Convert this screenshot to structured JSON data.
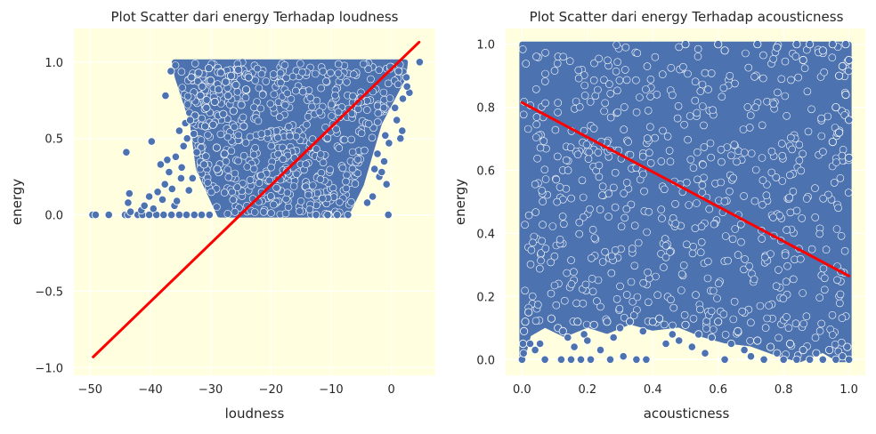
{
  "chart_data": [
    {
      "type": "scatter",
      "title": "Plot Scatter dari energy Terhadap loudness",
      "xlabel": "loudness",
      "ylabel": "energy",
      "xlim": [
        -52.7,
        7.3
      ],
      "ylim": [
        -1.05,
        1.22
      ],
      "xticks": [
        -50,
        -40,
        -30,
        -20,
        -10,
        0
      ],
      "xtick_labels": [
        "−50",
        "−40",
        "−30",
        "−20",
        "−10",
        "0"
      ],
      "yticks": [
        -1.0,
        -0.5,
        0.0,
        0.5,
        1.0
      ],
      "ytick_labels": [
        "−1.0",
        "−0.5",
        "0.0",
        "0.5",
        "1.0"
      ],
      "grid": true,
      "plot_background": "#ffffe0",
      "point_color": "#4c72b0",
      "line_color": "#ff0000",
      "regression_line": {
        "x": [
          -49.5,
          4.6
        ],
        "y": [
          -0.93,
          1.13
        ]
      },
      "dense_region": {
        "vertices": [
          [
            -36,
            1.0
          ],
          [
            2.3,
            1.0
          ],
          [
            2.0,
            0.9
          ],
          [
            -2.0,
            0.6
          ],
          [
            -5.0,
            0.2
          ],
          [
            -7.5,
            0.0
          ],
          [
            -28.5,
            0.0
          ],
          [
            -32,
            0.3
          ],
          [
            -33,
            0.6
          ],
          [
            -35.5,
            0.9
          ]
        ],
        "note": "overplotted dense cloud of points"
      },
      "points": [
        [
          -49.6,
          0.0
        ],
        [
          -49.1,
          0.0
        ],
        [
          -46.9,
          0.0
        ],
        [
          -44.2,
          0.0
        ],
        [
          -43.7,
          0.0
        ],
        [
          -42.1,
          0.0
        ],
        [
          -41.3,
          0.0
        ],
        [
          -40.2,
          0.0
        ],
        [
          -39.0,
          0.0
        ],
        [
          -37.8,
          0.0
        ],
        [
          -36.5,
          0.0
        ],
        [
          -35.2,
          0.0
        ],
        [
          -34.0,
          0.0
        ],
        [
          -32.7,
          0.0
        ],
        [
          -31.5,
          0.0
        ],
        [
          -30.2,
          0.0
        ],
        [
          -12.5,
          0.0
        ],
        [
          -10.6,
          0.0
        ],
        [
          -9.0,
          0.0
        ],
        [
          -7.2,
          0.0
        ],
        [
          -0.5,
          0.0
        ],
        [
          -44.0,
          0.41
        ],
        [
          -43.5,
          0.14
        ],
        [
          -43.7,
          0.08
        ],
        [
          -43.3,
          0.02
        ],
        [
          -41.5,
          0.03
        ],
        [
          -41.0,
          0.06
        ],
        [
          -40.2,
          0.12
        ],
        [
          -39.5,
          0.04
        ],
        [
          -38.8,
          0.15
        ],
        [
          -38.3,
          0.33
        ],
        [
          -38.0,
          0.1
        ],
        [
          -37.6,
          0.2
        ],
        [
          -37.2,
          0.36
        ],
        [
          -36.9,
          0.28
        ],
        [
          -36.4,
          0.17
        ],
        [
          -36.0,
          0.06
        ],
        [
          -35.6,
          0.09
        ],
        [
          -35.2,
          0.55
        ],
        [
          -34.8,
          0.31
        ],
        [
          -34.5,
          0.45
        ],
        [
          -34.2,
          0.6
        ],
        [
          -33.9,
          0.5
        ],
        [
          -33.6,
          0.16
        ],
        [
          -33.2,
          0.9
        ],
        [
          -33.0,
          0.24
        ],
        [
          -32.6,
          0.65
        ],
        [
          -32.3,
          0.41
        ],
        [
          -32.0,
          0.93
        ],
        [
          -31.7,
          0.78
        ],
        [
          -31.4,
          0.84
        ],
        [
          -31.1,
          0.33
        ],
        [
          -30.7,
          0.7
        ],
        [
          -30.3,
          0.96
        ],
        [
          -30.0,
          0.88
        ],
        [
          -29.6,
          0.59
        ],
        [
          -29.3,
          0.74
        ],
        [
          -29.0,
          0.44
        ],
        [
          -28.7,
          0.82
        ],
        [
          -28.3,
          0.93
        ],
        [
          -27.9,
          0.66
        ],
        [
          -27.5,
          0.87
        ],
        [
          -27.1,
          0.78
        ],
        [
          -26.6,
          0.91
        ],
        [
          -26.2,
          0.68
        ],
        [
          -25.8,
          0.85
        ],
        [
          -25.4,
          0.95
        ],
        [
          -24.9,
          0.72
        ],
        [
          -24.5,
          0.58
        ],
        [
          -24.1,
          0.82
        ],
        [
          -23.7,
          0.9
        ],
        [
          -39.8,
          0.48
        ],
        [
          -37.5,
          0.78
        ],
        [
          -36.6,
          0.94
        ],
        [
          -35.8,
          0.38
        ],
        [
          -34.9,
          0.24
        ],
        [
          -33.4,
          0.62
        ],
        [
          -32.8,
          0.53
        ],
        [
          -30.9,
          0.58
        ],
        [
          -28.9,
          0.3
        ],
        [
          -27.7,
          0.4
        ],
        [
          1.2,
          0.94
        ],
        [
          2.5,
          0.9
        ],
        [
          3.0,
          0.8
        ],
        [
          1.8,
          0.55
        ],
        [
          2.6,
          0.84
        ],
        [
          4.7,
          1.0
        ],
        [
          1.5,
          0.5
        ],
        [
          -0.8,
          0.2
        ],
        [
          -1.2,
          0.35
        ],
        [
          -2.0,
          0.25
        ],
        [
          -2.3,
          0.4
        ],
        [
          -3.1,
          0.12
        ],
        [
          -4.0,
          0.08
        ],
        [
          -1.6,
          0.28
        ],
        [
          0.6,
          0.7
        ],
        [
          0.9,
          0.62
        ],
        [
          -0.4,
          0.47
        ],
        [
          -2.8,
          0.3
        ],
        [
          1.9,
          0.76
        ],
        [
          -1.0,
          0.52
        ]
      ]
    },
    {
      "type": "scatter",
      "title": "Plot Scatter dari energy Terhadap acousticness",
      "xlabel": "acousticness",
      "ylabel": "energy",
      "xlim": [
        -0.05,
        1.05
      ],
      "ylim": [
        -0.05,
        1.05
      ],
      "xticks": [
        0.0,
        0.2,
        0.4,
        0.6,
        0.8,
        1.0
      ],
      "xtick_labels": [
        "0.0",
        "0.2",
        "0.4",
        "0.6",
        "0.8",
        "1.0"
      ],
      "yticks": [
        0.0,
        0.2,
        0.4,
        0.6,
        0.8,
        1.0
      ],
      "ytick_labels": [
        "0.0",
        "0.2",
        "0.4",
        "0.6",
        "0.8",
        "1.0"
      ],
      "grid": true,
      "plot_background": "#ffffe0",
      "point_color": "#4c72b0",
      "line_color": "#ff0000",
      "regression_line": {
        "x": [
          0.0,
          1.0
        ],
        "y": [
          0.815,
          0.265
        ]
      },
      "dense_region": {
        "vertices": [
          [
            0.0,
            1.0
          ],
          [
            1.0,
            1.0
          ],
          [
            1.0,
            0.0
          ],
          [
            0.97,
            0.0
          ],
          [
            0.92,
            0.03
          ],
          [
            0.85,
            0.0
          ],
          [
            0.78,
            0.02
          ],
          [
            0.7,
            0.05
          ],
          [
            0.62,
            0.06
          ],
          [
            0.55,
            0.08
          ],
          [
            0.48,
            0.11
          ],
          [
            0.4,
            0.1
          ],
          [
            0.33,
            0.12
          ],
          [
            0.26,
            0.09
          ],
          [
            0.2,
            0.11
          ],
          [
            0.13,
            0.08
          ],
          [
            0.07,
            0.11
          ],
          [
            0.02,
            0.08
          ],
          [
            0.0,
            0.0
          ]
        ],
        "note": "overplotted dense cloud of points"
      },
      "points": [
        [
          0.0,
          0.0
        ],
        [
          0.005,
          0.02
        ],
        [
          0.003,
          0.05
        ],
        [
          0.006,
          0.09
        ],
        [
          0.01,
          0.12
        ],
        [
          0.02,
          0.15
        ],
        [
          0.025,
          0.05
        ],
        [
          0.04,
          0.03
        ],
        [
          0.055,
          0.05
        ],
        [
          0.07,
          0.0
        ],
        [
          0.09,
          0.13
        ],
        [
          0.11,
          0.1
        ],
        [
          0.12,
          0.0
        ],
        [
          0.125,
          0.09
        ],
        [
          0.14,
          0.07
        ],
        [
          0.15,
          0.0
        ],
        [
          0.16,
          0.04
        ],
        [
          0.17,
          0.12
        ],
        [
          0.18,
          0.0
        ],
        [
          0.19,
          0.08
        ],
        [
          0.2,
          0.06
        ],
        [
          0.21,
          0.0
        ],
        [
          0.22,
          0.11
        ],
        [
          0.24,
          0.03
        ],
        [
          0.26,
          0.12
        ],
        [
          0.27,
          0.0
        ],
        [
          0.28,
          0.07
        ],
        [
          0.3,
          0.1
        ],
        [
          0.31,
          0.01
        ],
        [
          0.33,
          0.12
        ],
        [
          0.35,
          0.0
        ],
        [
          0.37,
          0.09
        ],
        [
          0.38,
          0.0
        ],
        [
          0.4,
          0.12
        ],
        [
          0.42,
          0.13
        ],
        [
          0.44,
          0.05
        ],
        [
          0.46,
          0.08
        ],
        [
          0.48,
          0.06
        ],
        [
          0.5,
          0.11
        ],
        [
          0.52,
          0.04
        ],
        [
          0.54,
          0.08
        ],
        [
          0.56,
          0.02
        ],
        [
          0.58,
          0.07
        ],
        [
          0.6,
          0.12
        ],
        [
          0.62,
          0.0
        ],
        [
          0.64,
          0.05
        ],
        [
          0.66,
          0.09
        ],
        [
          0.68,
          0.03
        ],
        [
          0.7,
          0.01
        ],
        [
          0.72,
          0.06
        ],
        [
          0.74,
          0.0
        ],
        [
          0.76,
          0.04
        ],
        [
          0.78,
          0.02
        ],
        [
          0.8,
          0.0
        ],
        [
          0.82,
          0.05
        ],
        [
          0.84,
          0.0
        ],
        [
          0.86,
          0.03
        ],
        [
          0.88,
          0.0
        ],
        [
          0.9,
          0.02
        ],
        [
          0.92,
          0.0
        ],
        [
          0.94,
          0.03
        ],
        [
          0.96,
          0.0
        ],
        [
          0.98,
          0.01
        ],
        [
          1.0,
          0.0
        ],
        [
          0.995,
          0.04
        ],
        [
          0.5,
          1.0
        ],
        [
          0.6,
          1.0
        ],
        [
          0.62,
          0.98
        ],
        [
          0.72,
          1.0
        ],
        [
          0.78,
          0.99
        ],
        [
          0.84,
          1.0
        ],
        [
          0.86,
          0.95
        ],
        [
          0.88,
          1.0
        ],
        [
          0.92,
          0.98
        ],
        [
          0.95,
          1.0
        ],
        [
          0.99,
          1.0
        ],
        [
          1.0,
          0.95
        ],
        [
          0.97,
          0.9
        ],
        [
          0.99,
          0.84
        ],
        [
          0.96,
          0.8
        ],
        [
          1.0,
          0.76
        ],
        [
          0.97,
          0.72
        ],
        [
          0.95,
          0.69
        ],
        [
          1.0,
          0.64
        ],
        [
          0.98,
          0.93
        ]
      ]
    }
  ]
}
